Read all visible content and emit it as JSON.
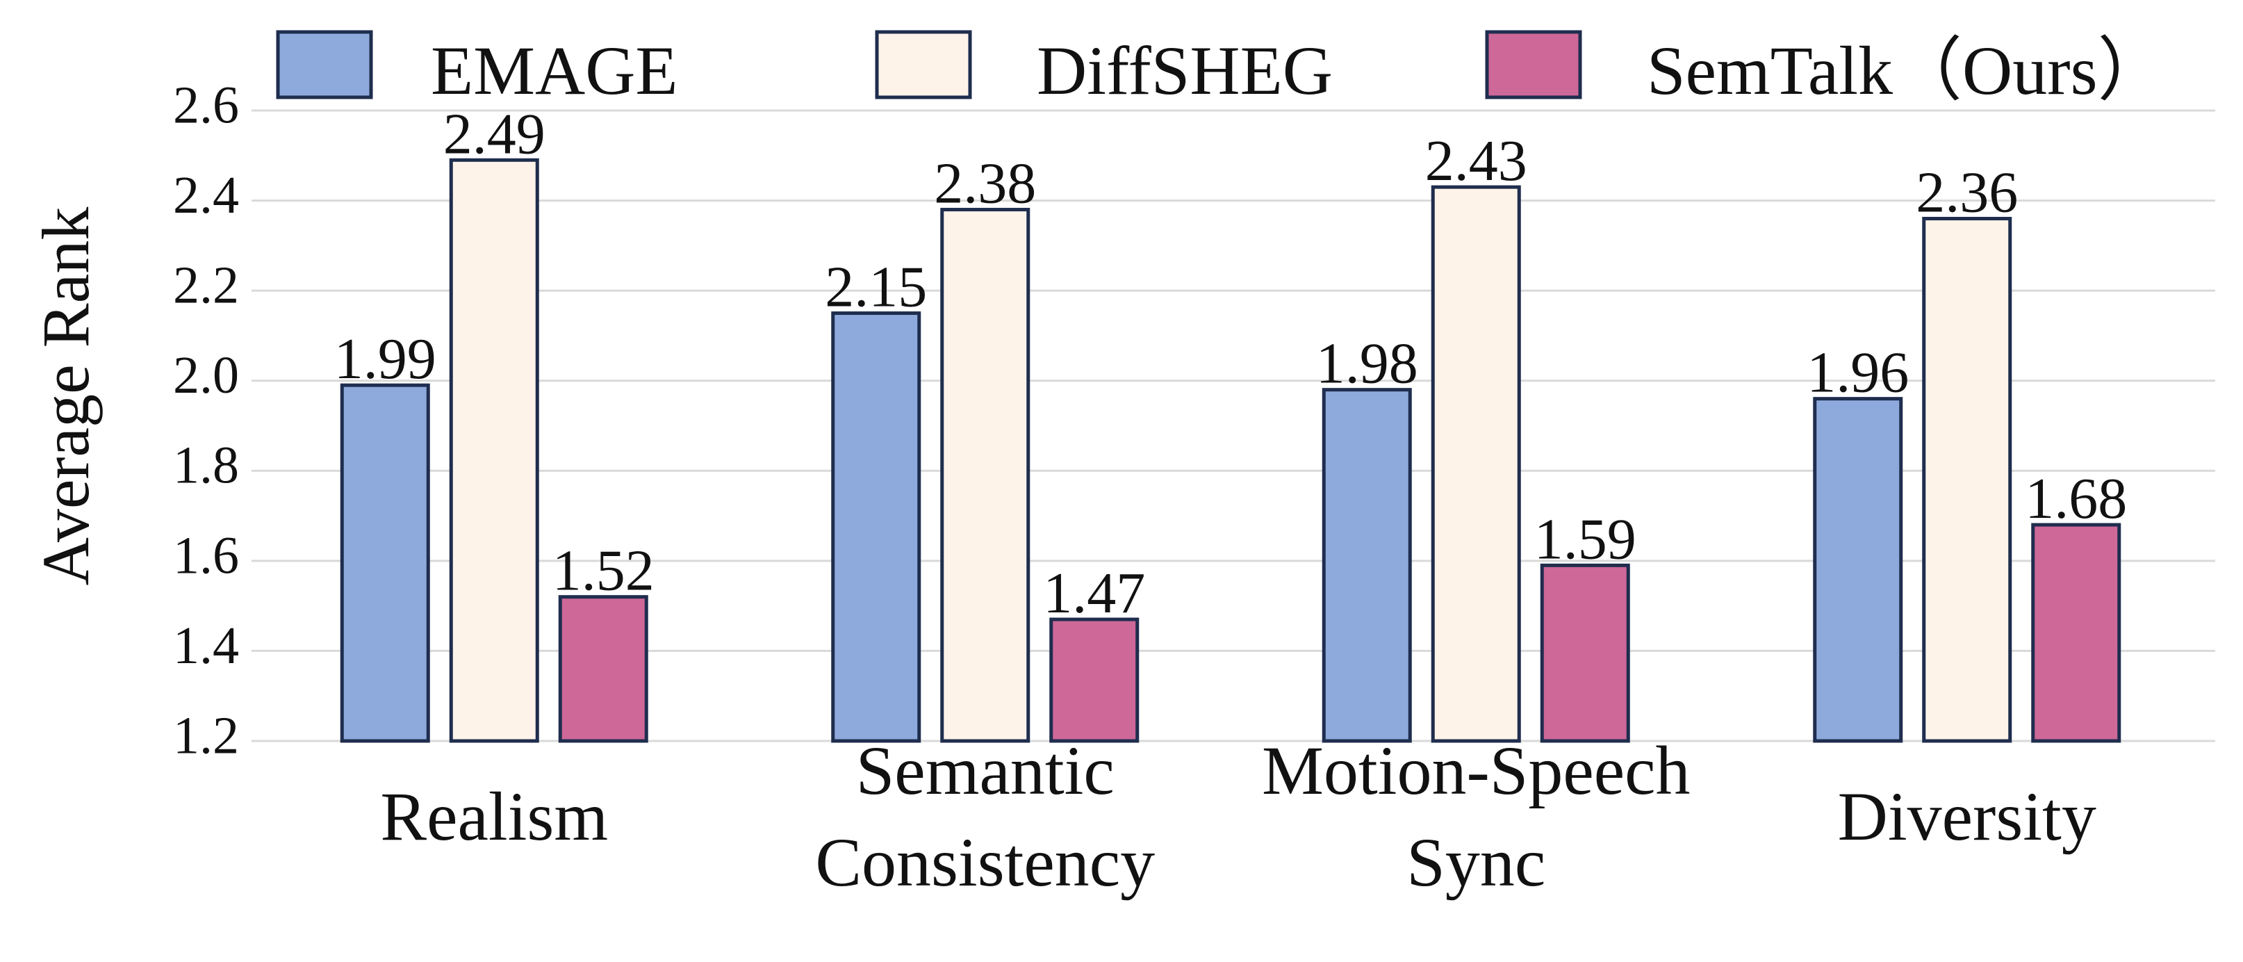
{
  "chart_data": {
    "type": "bar",
    "y_label": "Average Rank",
    "categories": [
      "Realism",
      "Semantic\nConsistency",
      "Motion-Speech\nSync",
      "Diversity"
    ],
    "series": [
      {
        "name": "EMAGE",
        "color": "#8eaadc",
        "values": [
          1.99,
          2.15,
          1.98,
          1.96
        ]
      },
      {
        "name": "DiffSHEG",
        "color": "#fdf3e9",
        "values": [
          2.49,
          2.38,
          2.43,
          2.36
        ]
      },
      {
        "name": "SemTalk（Ours）",
        "color": "#cd6898",
        "values": [
          1.52,
          1.47,
          1.59,
          1.68
        ]
      }
    ],
    "ylim": [
      1.2,
      2.6
    ],
    "yticks": [
      1.2,
      1.4,
      1.6,
      1.8,
      {
        "value": 2,
        "label": "2.0"
      },
      2.2,
      2.4,
      2.6
    ],
    "grid": true,
    "legend": "top"
  }
}
